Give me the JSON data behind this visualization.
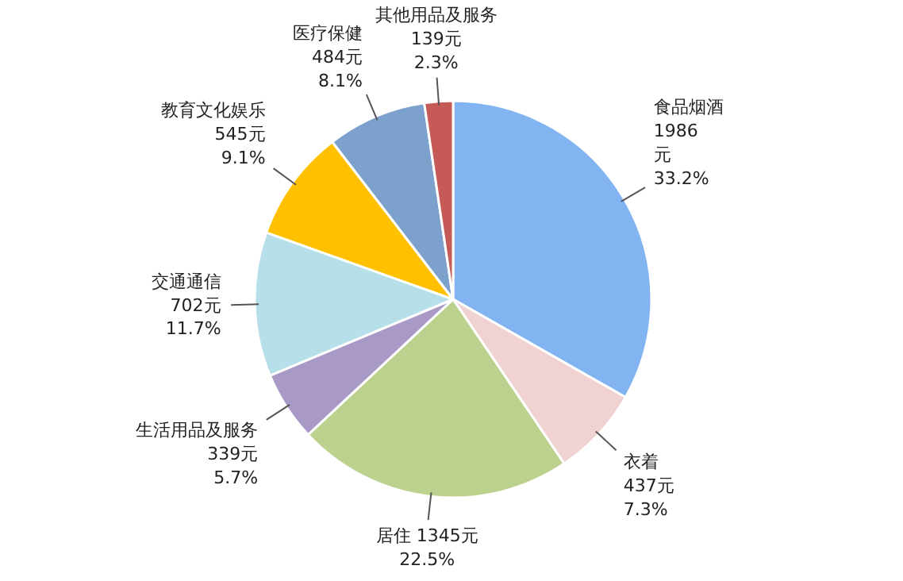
{
  "chart_data": {
    "type": "pie",
    "categories": [
      "食品烟酒",
      "衣着",
      "居住",
      "生活用品及服务",
      "交通通信",
      "教育文化娱乐",
      "医疗保健",
      "其他用品及服务"
    ],
    "values": [
      1986,
      437,
      1345,
      339,
      702,
      545,
      484,
      139
    ],
    "value_labels": [
      "1986\n元\n33.2%",
      "437元\n7.3%",
      "1345元\n22.5%",
      "339元\n5.7%",
      "702元\n11.7%",
      "545元\n9.1%",
      "484元\n8.1%",
      "139元\n2.3%"
    ],
    "colors": [
      "#82b4f2",
      "#f0d2d2",
      "#bdd18f",
      "#a899c6",
      "#b6dfe9",
      "#ffc000",
      "#7ca1cd",
      "#c55a57"
    ]
  }
}
